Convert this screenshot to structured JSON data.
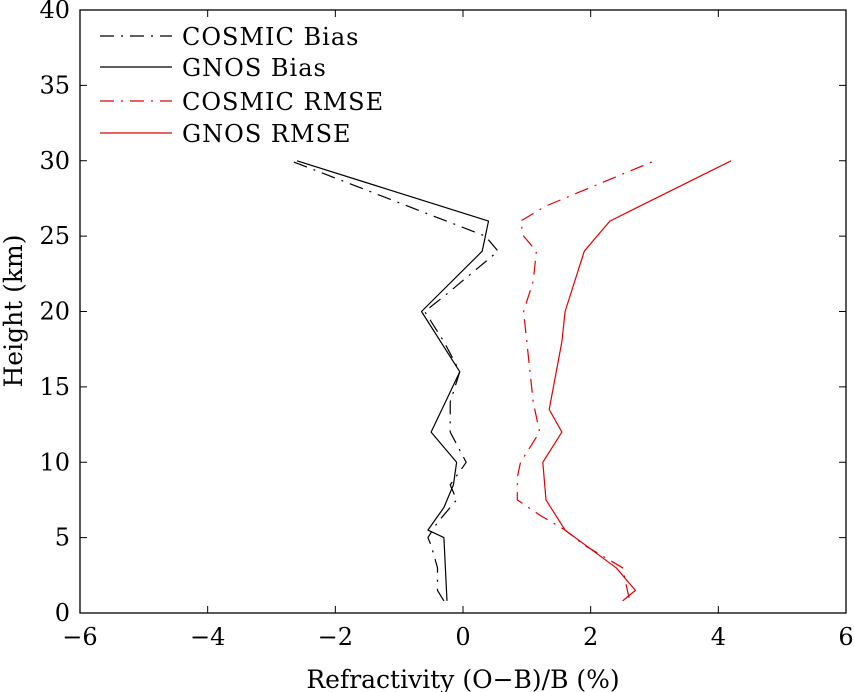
{
  "chart_data": {
    "type": "line",
    "title": "",
    "xlabel": "Refractivity (O−B)/B (%)",
    "ylabel": "Height (km)",
    "xlim": [
      -6,
      6
    ],
    "ylim": [
      0,
      40
    ],
    "xticks": [
      -6,
      -4,
      -2,
      0,
      2,
      4,
      6
    ],
    "yticks": [
      0,
      5,
      10,
      15,
      20,
      25,
      30,
      35,
      40
    ],
    "xtick_labels": [
      "−6",
      "−4",
      "−2",
      "0",
      "2",
      "4",
      "6"
    ],
    "ytick_labels": [
      "0",
      "5",
      "10",
      "15",
      "20",
      "25",
      "30",
      "35",
      "40"
    ],
    "grid": false,
    "legend_position": "top-left",
    "series": [
      {
        "name": "COSMIC Bias",
        "color": "#000000",
        "dash": "dashdot",
        "points": [
          [
            -0.3,
            0.8
          ],
          [
            -0.4,
            1.5
          ],
          [
            -0.4,
            3
          ],
          [
            -0.5,
            4.5
          ],
          [
            -0.55,
            5
          ],
          [
            -0.4,
            6
          ],
          [
            -0.1,
            7.5
          ],
          [
            -0.2,
            8.5
          ],
          [
            0.05,
            10
          ],
          [
            -0.2,
            12
          ],
          [
            -0.2,
            14
          ],
          [
            -0.05,
            16
          ],
          [
            -0.3,
            18
          ],
          [
            -0.6,
            20
          ],
          [
            -0.3,
            21
          ],
          [
            0.55,
            24
          ],
          [
            0.35,
            25
          ],
          [
            -2.7,
            30
          ]
        ]
      },
      {
        "name": "GNOS Bias",
        "color": "#000000",
        "dash": "solid",
        "points": [
          [
            -0.25,
            0.8
          ],
          [
            -0.3,
            5
          ],
          [
            -0.55,
            5.5
          ],
          [
            -0.3,
            7
          ],
          [
            -0.15,
            8.5
          ],
          [
            -0.1,
            10
          ],
          [
            -0.5,
            12
          ],
          [
            -0.05,
            16
          ],
          [
            -0.65,
            20
          ],
          [
            0.3,
            24
          ],
          [
            0.4,
            26
          ],
          [
            -2.6,
            30
          ]
        ]
      },
      {
        "name": "COSMIC RMSE",
        "color": "#e00000",
        "dash": "dashdot",
        "points": [
          [
            2.6,
            1
          ],
          [
            2.55,
            2
          ],
          [
            2.5,
            3
          ],
          [
            1.9,
            4.5
          ],
          [
            1.6,
            5.5
          ],
          [
            1.2,
            6.5
          ],
          [
            0.85,
            7.5
          ],
          [
            0.85,
            9
          ],
          [
            0.9,
            10
          ],
          [
            1.2,
            12
          ],
          [
            1.1,
            14
          ],
          [
            1.05,
            16
          ],
          [
            1.0,
            18
          ],
          [
            0.95,
            20
          ],
          [
            1.1,
            22
          ],
          [
            1.15,
            24
          ],
          [
            0.95,
            25
          ],
          [
            0.9,
            26
          ],
          [
            1.3,
            27
          ],
          [
            3.0,
            30
          ]
        ]
      },
      {
        "name": "GNOS RMSE",
        "color": "#e00000",
        "dash": "solid",
        "points": [
          [
            2.5,
            0.8
          ],
          [
            2.7,
            1.5
          ],
          [
            2.6,
            2
          ],
          [
            2.4,
            3
          ],
          [
            1.6,
            5.5
          ],
          [
            1.3,
            7.5
          ],
          [
            1.25,
            10
          ],
          [
            1.55,
            12
          ],
          [
            1.35,
            13.5
          ],
          [
            1.55,
            18
          ],
          [
            1.6,
            20
          ],
          [
            1.9,
            24
          ],
          [
            2.3,
            26
          ],
          [
            4.2,
            30
          ]
        ]
      }
    ]
  }
}
